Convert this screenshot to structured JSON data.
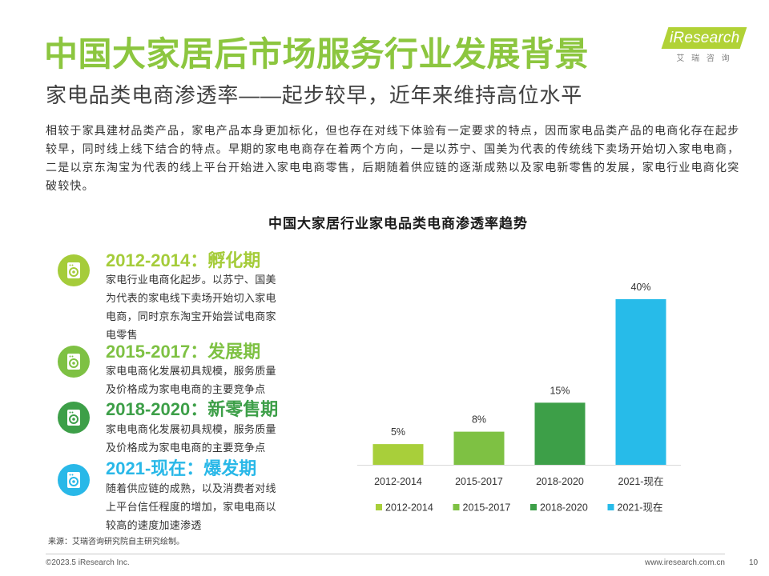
{
  "header": {
    "title": "中国大家居后市场服务行业发展背景",
    "title_color": "#8cc63f",
    "subtitle": "家电品类电商渗透率——起步较早，近年来维持高位水平"
  },
  "logo": {
    "wordmark": "iResearch",
    "chinese": "艾 瑞 咨 询",
    "color": "#b1d236"
  },
  "intro": {
    "lines": [
      "相较于家具建材品类产品，家电产品本身更加标化，但也存在对线下体验有一定要求的特点，因而家电品类产品的电商化存在起步",
      "较早，同时线上线下结合的特点。早期的家电电商存在着两个方向，一是以苏宁、国美为代表的传统线下卖场开始切入家电电商，",
      "二是以京东淘宝为代表的线上平台开始进入家电电商零售，后期随着供应链的逐渐成熟以及家电新零售的发展，家电行业电商化突",
      "破较快。"
    ]
  },
  "timeline": {
    "stages": [
      {
        "heading": "2012-2014：孵化期",
        "color": "#a5cc3a",
        "icon": "washing-machine-icon",
        "lines": [
          "家电行业电商化起步。以苏宁、国美",
          "为代表的家电线下卖场开始切入家电",
          "电商，同时京东淘宝开始尝试电商家",
          "电零售"
        ]
      },
      {
        "heading": "2015-2017：发展期",
        "color": "#7ec143",
        "icon": "washing-machine-icon",
        "lines": [
          "家电电商化发展初具规模，服务质量",
          "及价格成为家电电商的主要竞争点"
        ]
      },
      {
        "heading": "2018-2020：新零售期",
        "color": "#3d9f48",
        "icon": "washing-machine-icon",
        "lines": [
          "家电电商化发展初具规模，服务质量",
          "及价格成为家电电商的主要竞争点"
        ]
      },
      {
        "heading": "2021-现在：爆发期",
        "color": "#29b8e8",
        "icon": "washing-machine-icon",
        "lines": [
          "随着供应链的成熟，以及消费者对线",
          "上平台信任程度的增加，家电电商以",
          "较高的速度加速渗透"
        ]
      }
    ]
  },
  "chart_data": {
    "type": "bar",
    "title": "中国大家居行业家电品类电商渗透率趋势",
    "categories": [
      "2012-2014",
      "2015-2017",
      "2018-2020",
      "2021-现在"
    ],
    "values": [
      5,
      8,
      15,
      40
    ],
    "data_labels": [
      "5%",
      "8%",
      "15%",
      "40%"
    ],
    "colors": [
      "#a8cf3a",
      "#7ec143",
      "#3d9f48",
      "#27bbe9"
    ],
    "ylim": [
      0,
      40
    ],
    "grid": false,
    "legend": {
      "position": "bottom",
      "entries": [
        "2012-2014",
        "2015-2017",
        "2018-2020",
        "2021-现在"
      ]
    }
  },
  "footer": {
    "source": "来源：艾瑞咨询研究院自主研究绘制。",
    "copyright": "©2023.5 iResearch Inc.",
    "website": "www.iresearch.com.cn",
    "page_number": "10"
  }
}
